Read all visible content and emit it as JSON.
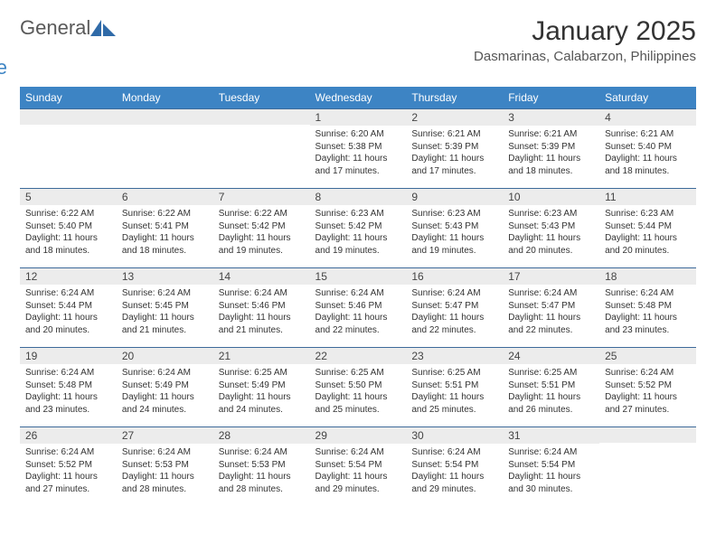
{
  "brand": {
    "general": "General",
    "blue": "Blue"
  },
  "title": "January 2025",
  "location": "Dasmarinas, Calabarzon, Philippines",
  "colors": {
    "header_bg": "#3d84c4",
    "header_text": "#ffffff",
    "daynum_bg": "#ececec",
    "row_border": "#3d6a9a",
    "logo_gray": "#595959",
    "logo_blue": "#3d84c4"
  },
  "weekdays": [
    "Sunday",
    "Monday",
    "Tuesday",
    "Wednesday",
    "Thursday",
    "Friday",
    "Saturday"
  ],
  "weeks": [
    [
      {
        "day": "",
        "sunrise": "",
        "sunset": "",
        "daylight": ""
      },
      {
        "day": "",
        "sunrise": "",
        "sunset": "",
        "daylight": ""
      },
      {
        "day": "",
        "sunrise": "",
        "sunset": "",
        "daylight": ""
      },
      {
        "day": "1",
        "sunrise": "Sunrise: 6:20 AM",
        "sunset": "Sunset: 5:38 PM",
        "daylight": "Daylight: 11 hours and 17 minutes."
      },
      {
        "day": "2",
        "sunrise": "Sunrise: 6:21 AM",
        "sunset": "Sunset: 5:39 PM",
        "daylight": "Daylight: 11 hours and 17 minutes."
      },
      {
        "day": "3",
        "sunrise": "Sunrise: 6:21 AM",
        "sunset": "Sunset: 5:39 PM",
        "daylight": "Daylight: 11 hours and 18 minutes."
      },
      {
        "day": "4",
        "sunrise": "Sunrise: 6:21 AM",
        "sunset": "Sunset: 5:40 PM",
        "daylight": "Daylight: 11 hours and 18 minutes."
      }
    ],
    [
      {
        "day": "5",
        "sunrise": "Sunrise: 6:22 AM",
        "sunset": "Sunset: 5:40 PM",
        "daylight": "Daylight: 11 hours and 18 minutes."
      },
      {
        "day": "6",
        "sunrise": "Sunrise: 6:22 AM",
        "sunset": "Sunset: 5:41 PM",
        "daylight": "Daylight: 11 hours and 18 minutes."
      },
      {
        "day": "7",
        "sunrise": "Sunrise: 6:22 AM",
        "sunset": "Sunset: 5:42 PM",
        "daylight": "Daylight: 11 hours and 19 minutes."
      },
      {
        "day": "8",
        "sunrise": "Sunrise: 6:23 AM",
        "sunset": "Sunset: 5:42 PM",
        "daylight": "Daylight: 11 hours and 19 minutes."
      },
      {
        "day": "9",
        "sunrise": "Sunrise: 6:23 AM",
        "sunset": "Sunset: 5:43 PM",
        "daylight": "Daylight: 11 hours and 19 minutes."
      },
      {
        "day": "10",
        "sunrise": "Sunrise: 6:23 AM",
        "sunset": "Sunset: 5:43 PM",
        "daylight": "Daylight: 11 hours and 20 minutes."
      },
      {
        "day": "11",
        "sunrise": "Sunrise: 6:23 AM",
        "sunset": "Sunset: 5:44 PM",
        "daylight": "Daylight: 11 hours and 20 minutes."
      }
    ],
    [
      {
        "day": "12",
        "sunrise": "Sunrise: 6:24 AM",
        "sunset": "Sunset: 5:44 PM",
        "daylight": "Daylight: 11 hours and 20 minutes."
      },
      {
        "day": "13",
        "sunrise": "Sunrise: 6:24 AM",
        "sunset": "Sunset: 5:45 PM",
        "daylight": "Daylight: 11 hours and 21 minutes."
      },
      {
        "day": "14",
        "sunrise": "Sunrise: 6:24 AM",
        "sunset": "Sunset: 5:46 PM",
        "daylight": "Daylight: 11 hours and 21 minutes."
      },
      {
        "day": "15",
        "sunrise": "Sunrise: 6:24 AM",
        "sunset": "Sunset: 5:46 PM",
        "daylight": "Daylight: 11 hours and 22 minutes."
      },
      {
        "day": "16",
        "sunrise": "Sunrise: 6:24 AM",
        "sunset": "Sunset: 5:47 PM",
        "daylight": "Daylight: 11 hours and 22 minutes."
      },
      {
        "day": "17",
        "sunrise": "Sunrise: 6:24 AM",
        "sunset": "Sunset: 5:47 PM",
        "daylight": "Daylight: 11 hours and 22 minutes."
      },
      {
        "day": "18",
        "sunrise": "Sunrise: 6:24 AM",
        "sunset": "Sunset: 5:48 PM",
        "daylight": "Daylight: 11 hours and 23 minutes."
      }
    ],
    [
      {
        "day": "19",
        "sunrise": "Sunrise: 6:24 AM",
        "sunset": "Sunset: 5:48 PM",
        "daylight": "Daylight: 11 hours and 23 minutes."
      },
      {
        "day": "20",
        "sunrise": "Sunrise: 6:24 AM",
        "sunset": "Sunset: 5:49 PM",
        "daylight": "Daylight: 11 hours and 24 minutes."
      },
      {
        "day": "21",
        "sunrise": "Sunrise: 6:25 AM",
        "sunset": "Sunset: 5:49 PM",
        "daylight": "Daylight: 11 hours and 24 minutes."
      },
      {
        "day": "22",
        "sunrise": "Sunrise: 6:25 AM",
        "sunset": "Sunset: 5:50 PM",
        "daylight": "Daylight: 11 hours and 25 minutes."
      },
      {
        "day": "23",
        "sunrise": "Sunrise: 6:25 AM",
        "sunset": "Sunset: 5:51 PM",
        "daylight": "Daylight: 11 hours and 25 minutes."
      },
      {
        "day": "24",
        "sunrise": "Sunrise: 6:25 AM",
        "sunset": "Sunset: 5:51 PM",
        "daylight": "Daylight: 11 hours and 26 minutes."
      },
      {
        "day": "25",
        "sunrise": "Sunrise: 6:24 AM",
        "sunset": "Sunset: 5:52 PM",
        "daylight": "Daylight: 11 hours and 27 minutes."
      }
    ],
    [
      {
        "day": "26",
        "sunrise": "Sunrise: 6:24 AM",
        "sunset": "Sunset: 5:52 PM",
        "daylight": "Daylight: 11 hours and 27 minutes."
      },
      {
        "day": "27",
        "sunrise": "Sunrise: 6:24 AM",
        "sunset": "Sunset: 5:53 PM",
        "daylight": "Daylight: 11 hours and 28 minutes."
      },
      {
        "day": "28",
        "sunrise": "Sunrise: 6:24 AM",
        "sunset": "Sunset: 5:53 PM",
        "daylight": "Daylight: 11 hours and 28 minutes."
      },
      {
        "day": "29",
        "sunrise": "Sunrise: 6:24 AM",
        "sunset": "Sunset: 5:54 PM",
        "daylight": "Daylight: 11 hours and 29 minutes."
      },
      {
        "day": "30",
        "sunrise": "Sunrise: 6:24 AM",
        "sunset": "Sunset: 5:54 PM",
        "daylight": "Daylight: 11 hours and 29 minutes."
      },
      {
        "day": "31",
        "sunrise": "Sunrise: 6:24 AM",
        "sunset": "Sunset: 5:54 PM",
        "daylight": "Daylight: 11 hours and 30 minutes."
      },
      {
        "day": "",
        "sunrise": "",
        "sunset": "",
        "daylight": ""
      }
    ]
  ]
}
